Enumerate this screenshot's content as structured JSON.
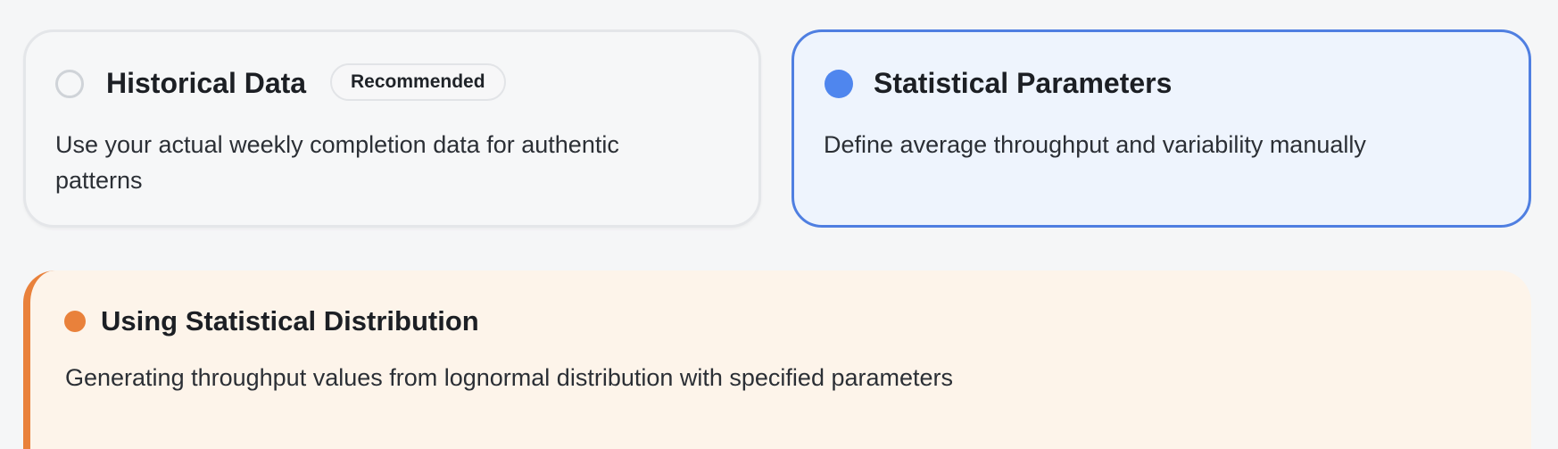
{
  "options": [
    {
      "title": "Historical Data",
      "badge": "Recommended",
      "description": "Use your actual weekly completion data for authentic patterns",
      "selected": false
    },
    {
      "title": "Statistical Parameters",
      "description": "Define average throughput and variability manually",
      "selected": true
    }
  ],
  "status": {
    "title": "Using Statistical Distribution",
    "description": "Generating throughput values from lognormal distribution with specified parameters"
  },
  "colors": {
    "selected_accent": "#4f86ee",
    "selected_background": "#eef4fd",
    "status_accent": "#e9813b",
    "status_background": "#fdf4ea"
  }
}
